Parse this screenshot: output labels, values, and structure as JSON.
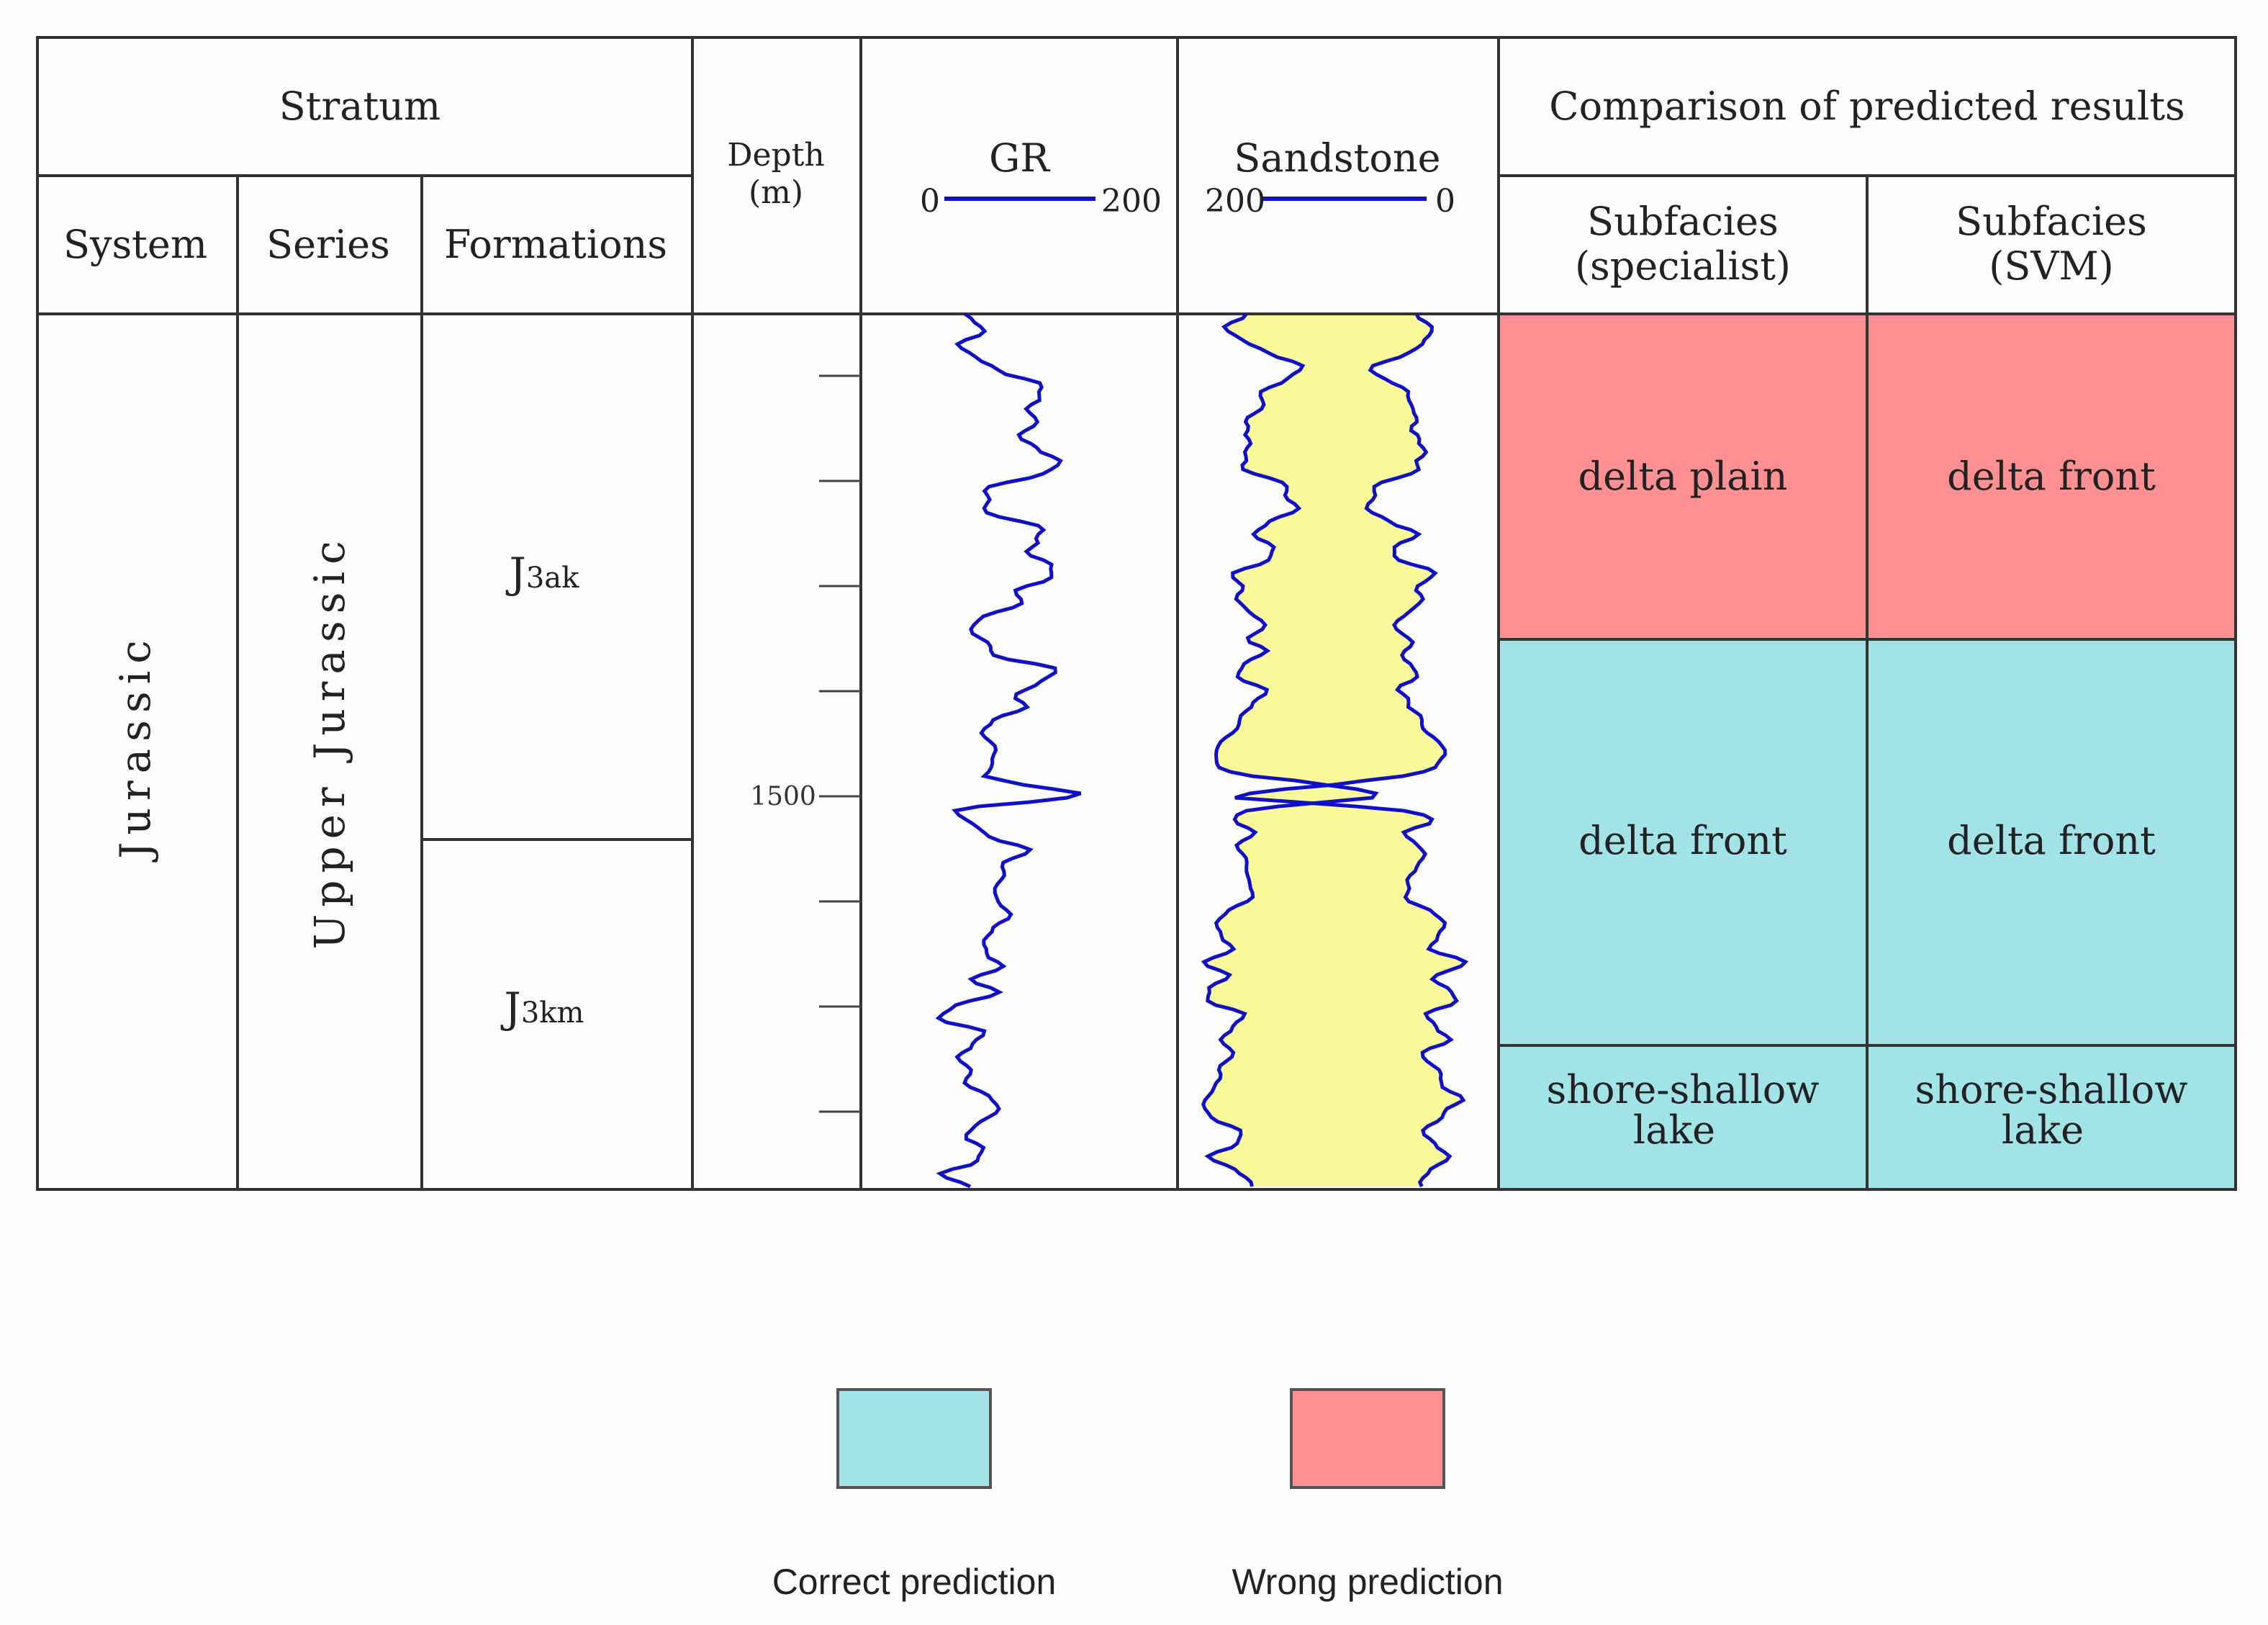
{
  "header": {
    "stratum": "Stratum",
    "system": "System",
    "series": "Series",
    "formations": "Formations",
    "depth": [
      "Depth",
      "(m)"
    ],
    "gr": {
      "title": "GR",
      "left": "0",
      "right": "200"
    },
    "sandstone": {
      "title": "Sandstone",
      "left": "200",
      "right": "0"
    },
    "comparison": "Comparison of predicted results",
    "subfacies_specialist": [
      "Subfacies",
      "(specialist)"
    ],
    "subfacies_svm": [
      "Subfacies",
      "(SVM)"
    ]
  },
  "strata": {
    "system": "Jurassic",
    "series": "Upper Jurassic",
    "formation_upper": {
      "main": "J",
      "sub": "3ak"
    },
    "formation_lower": {
      "main": "J",
      "sub": "3km"
    }
  },
  "depth_track": {
    "label": "1500"
  },
  "facies": {
    "specialist": [
      "delta plain",
      "delta front",
      [
        "shore-shallow",
        "lake"
      ]
    ],
    "svm": [
      "delta front",
      "delta front",
      [
        "shore-shallow",
        "lake"
      ]
    ],
    "results": [
      "wrong",
      "correct",
      "correct"
    ]
  },
  "legend": {
    "correct": "Correct prediction",
    "wrong": "Wrong prediction"
  },
  "colors": {
    "correct": "#a2e3e8",
    "wrong": "#fe8f93",
    "sand": "#fbfa9b",
    "log_line": "#1010c8",
    "grid": "#333333"
  }
}
